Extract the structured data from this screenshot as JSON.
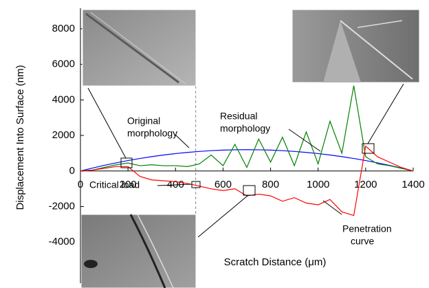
{
  "chart_data": {
    "type": "line",
    "xlabel": "Scratch Distance (μm)",
    "ylabel": "Displacement Into Surface (nm)",
    "x": [
      0,
      50,
      100,
      150,
      200,
      250,
      300,
      350,
      400,
      450,
      500,
      550,
      600,
      650,
      700,
      750,
      800,
      850,
      900,
      950,
      1000,
      1050,
      1100,
      1150,
      1200,
      1250,
      1300,
      1350,
      1400
    ],
    "series": [
      {
        "color": "#0000ff",
        "values": [
          0,
          165,
          318,
          459,
          588,
          704,
          808,
          900,
          980,
          1047,
          1102,
          1145,
          1176,
          1194,
          1200,
          1194,
          1176,
          1145,
          1102,
          1047,
          980,
          900,
          808,
          704,
          588,
          459,
          318,
          165,
          0
        ]
      },
      {
        "color": "#008000",
        "values": [
          0,
          50,
          200,
          350,
          450,
          300,
          350,
          300,
          300,
          250,
          400,
          900,
          300,
          1500,
          200,
          1800,
          500,
          1900,
          300,
          2200,
          400,
          2800,
          1000,
          4800,
          800,
          400,
          300,
          150,
          0
        ]
      },
      {
        "color": "#ff0000",
        "values": [
          0,
          50,
          150,
          250,
          250,
          -300,
          -500,
          -550,
          -600,
          -700,
          -850,
          -1000,
          -1100,
          -1000,
          -1400,
          -1300,
          -1400,
          -1700,
          -1500,
          -1800,
          -1900,
          -1600,
          -2300,
          -2500,
          1400,
          800,
          500,
          200,
          0
        ]
      }
    ],
    "critical_load_x": 485,
    "xlim": [
      0,
      1400
    ],
    "xticks": [
      0,
      200,
      400,
      600,
      800,
      1000,
      1200,
      1400
    ],
    "ylim": [
      -6000,
      9000
    ],
    "yticks": [
      -4000,
      -2000,
      0,
      2000,
      4000,
      6000,
      8000
    ],
    "annotations": {
      "original_morphology": [
        "Original",
        "morphology"
      ],
      "residual_morphology": [
        "Residual",
        "morphology"
      ],
      "critical_load": "Critical load",
      "penetration_curve": [
        "Penetration",
        "curve"
      ]
    }
  }
}
